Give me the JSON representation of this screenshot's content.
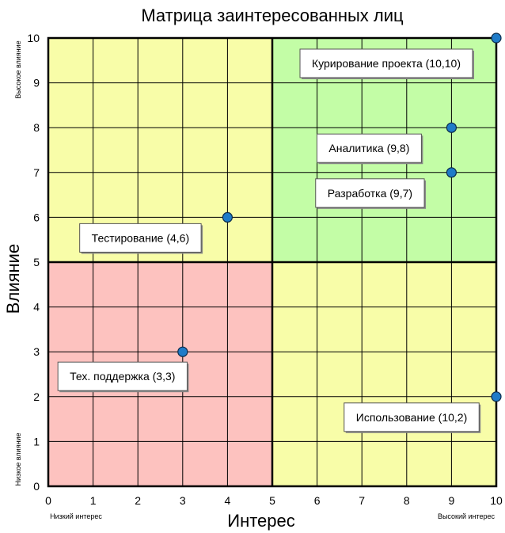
{
  "chart_data": {
    "type": "scatter",
    "title": "Матрица заинтересованных лиц",
    "xlabel": "Интерес",
    "ylabel": "Влияние",
    "xlim": [
      0,
      10
    ],
    "ylim": [
      0,
      10
    ],
    "x_ticks": [
      "0",
      "1",
      "2",
      "3",
      "4",
      "5",
      "6",
      "7",
      "8",
      "9",
      "10"
    ],
    "y_ticks": [
      "0",
      "1",
      "2",
      "3",
      "4",
      "5",
      "6",
      "7",
      "8",
      "9",
      "10"
    ],
    "grid": true,
    "x_low_label": "Низкий интерес",
    "x_high_label": "Высокий интерес",
    "y_low_label": "Низкое влияние",
    "y_high_label": "Высокое влияние",
    "quadrants": [
      {
        "x_range": [
          0,
          5
        ],
        "y_range": [
          5,
          10
        ],
        "color": "#f8fda8"
      },
      {
        "x_range": [
          5,
          10
        ],
        "y_range": [
          5,
          10
        ],
        "color": "#c3fda6"
      },
      {
        "x_range": [
          0,
          5
        ],
        "y_range": [
          0,
          5
        ],
        "color": "#fdc2bf"
      },
      {
        "x_range": [
          5,
          10
        ],
        "y_range": [
          0,
          5
        ],
        "color": "#f8fda8"
      }
    ],
    "point_color": "#1f7bc8",
    "points": [
      {
        "x": 10,
        "y": 10,
        "label": "Курирование проекта (10,10)"
      },
      {
        "x": 9,
        "y": 8,
        "label": "Аналитика (9,8)"
      },
      {
        "x": 9,
        "y": 7,
        "label": "Разработка (9,7)"
      },
      {
        "x": 4,
        "y": 6,
        "label": "Тестирование (4,6)"
      },
      {
        "x": 3,
        "y": 3,
        "label": "Тех. поддержка (3,3)"
      },
      {
        "x": 10,
        "y": 2,
        "label": "Использование (10,2)"
      }
    ]
  }
}
